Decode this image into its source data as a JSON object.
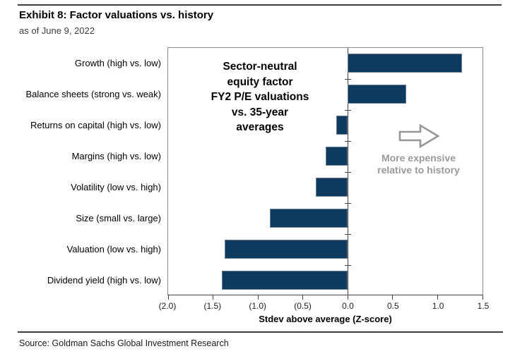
{
  "header": {
    "title": "Exhibit 8: Factor valuations vs. history",
    "subtitle": "as of June 9, 2022"
  },
  "annotation": {
    "lines": [
      "Sector-neutral",
      "equity factor",
      "FY2 P/E valuations",
      "vs. 35-year",
      "averages"
    ]
  },
  "note": {
    "icon": "right-arrow-icon",
    "lines": [
      "More expensive",
      "relative to history"
    ]
  },
  "colors": {
    "bar": "#0f3a5f",
    "note_gray": "#9a9a9a",
    "axis": "#404040",
    "plot_border": "#8a8a8a"
  },
  "source": "Source: Goldman Sachs Global Investment Research",
  "chart_data": {
    "type": "bar",
    "orientation": "horizontal",
    "title": "Sector-neutral equity factor FY2 P/E valuations vs. 35-year averages",
    "categories": [
      "Growth (high vs. low)",
      "Balance sheets (strong vs. weak)",
      "Returns on capital (high vs. low)",
      "Margins (high vs. low)",
      "Volatility (low vs. high)",
      "Size (small vs. large)",
      "Valuation (low vs. high)",
      "Dividend yield (high vs. low)"
    ],
    "values": [
      1.27,
      0.65,
      -0.13,
      -0.25,
      -0.36,
      -0.87,
      -1.37,
      -1.4
    ],
    "xlabel": "Stdev above average (Z-score)",
    "xlim": [
      -2.0,
      1.5
    ],
    "x_ticks": [
      {
        "v": -2.0,
        "label": "(2.0)"
      },
      {
        "v": -1.5,
        "label": "(1.5)"
      },
      {
        "v": -1.0,
        "label": "(1.0)"
      },
      {
        "v": -0.5,
        "label": "(0.5)"
      },
      {
        "v": 0.0,
        "label": "0.0"
      },
      {
        "v": 0.5,
        "label": "0.5"
      },
      {
        "v": 1.0,
        "label": "1.0"
      },
      {
        "v": 1.5,
        "label": "1.5"
      }
    ],
    "grid": false,
    "legend": null
  }
}
